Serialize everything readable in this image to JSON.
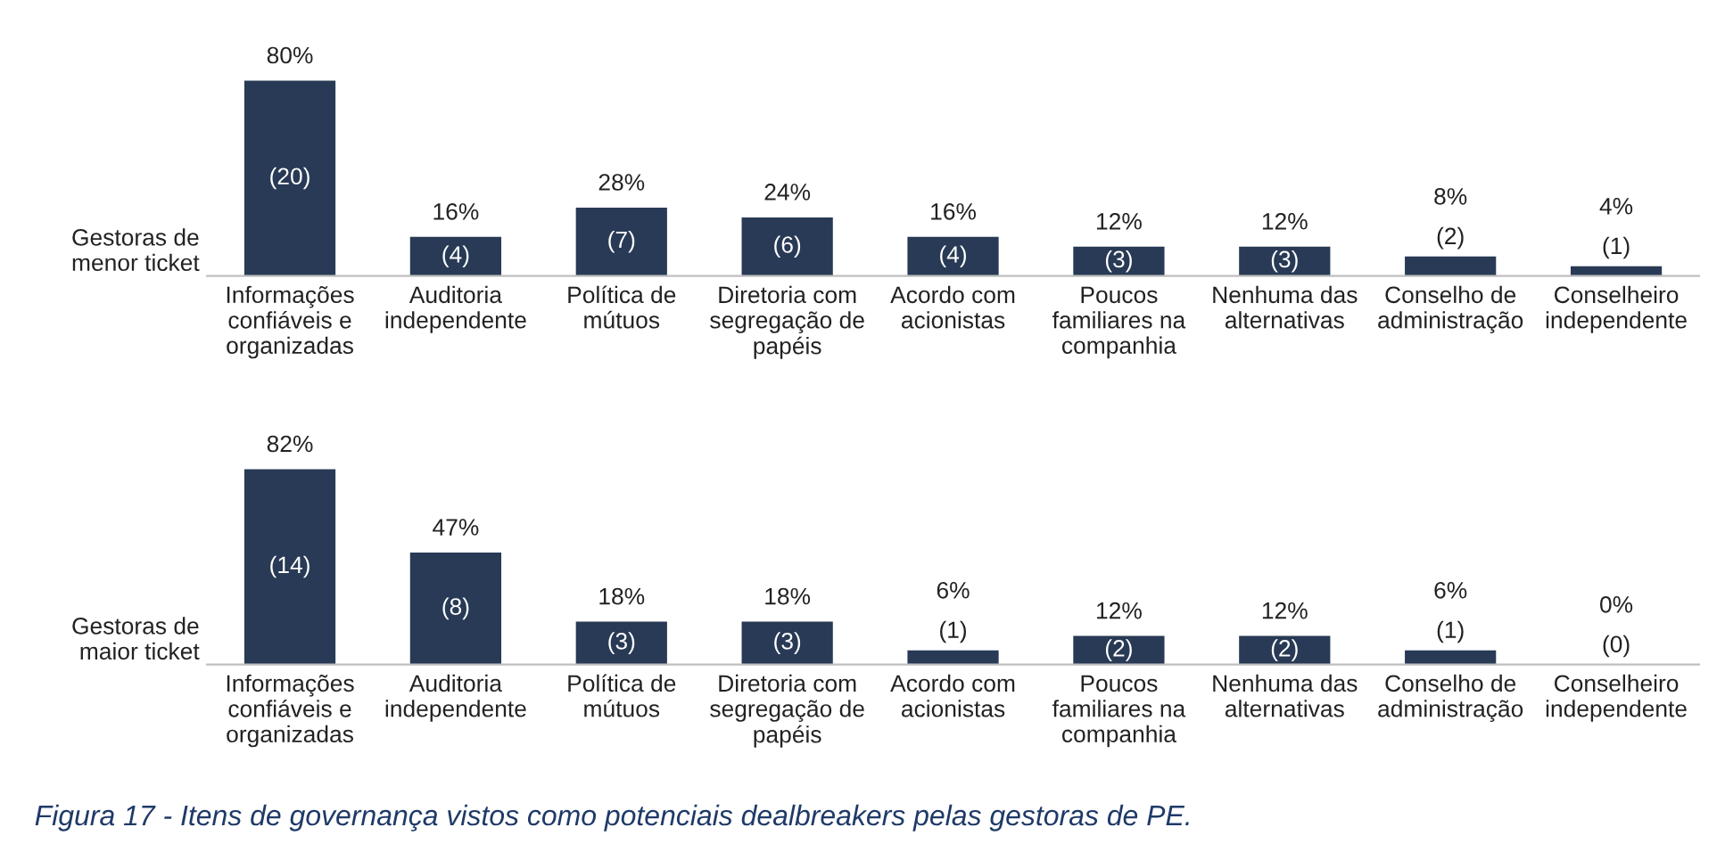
{
  "chart_data": [
    {
      "type": "bar",
      "ylabel": "Gestoras de\nmenor ticket",
      "color": "#283a55",
      "tick_labels": "x",
      "categories": [
        "Informações\nconfiáveis e\norganizadas",
        "Auditoria\nindependente",
        "Política de\nmútuos",
        "Diretoria com\nsegregação de\npapéis",
        "Acordo com\nacionistas",
        "Poucos\nfamiliares na\ncompanhia",
        "Nenhuma das\nalternativas",
        "Conselho de\nadministração",
        "Conselheiro\nindependente"
      ],
      "values": [
        80,
        16,
        28,
        24,
        16,
        12,
        12,
        8,
        4
      ],
      "value_labels": [
        "80%",
        "16%",
        "28%",
        "24%",
        "16%",
        "12%",
        "12%",
        "8%",
        "4%"
      ],
      "annotations": [
        "(20)",
        "(4)",
        "(7)",
        "(6)",
        "(4)",
        "(3)",
        "(3)",
        "(2)",
        "(1)"
      ]
    },
    {
      "type": "bar",
      "ylabel": "Gestoras de\nmaior ticket",
      "color": "#283a55",
      "tick_labels": "x",
      "categories": [
        "Informações\nconfiáveis e\norganizadas",
        "Auditoria\nindependente",
        "Política de\nmútuos",
        "Diretoria com\nsegregação de\npapéis",
        "Acordo com\nacionistas",
        "Poucos\nfamiliares na\ncompanhia",
        "Nenhuma das\nalternativas",
        "Conselho de\nadministração",
        "Conselheiro\nindependente"
      ],
      "values": [
        82,
        47,
        18,
        18,
        6,
        12,
        12,
        6,
        0
      ],
      "value_labels": [
        "82%",
        "47%",
        "18%",
        "18%",
        "6%",
        "12%",
        "12%",
        "6%",
        "0%"
      ],
      "annotations": [
        "(14)",
        "(8)",
        "(3)",
        "(3)",
        "(1)",
        "(2)",
        "(2)",
        "(1)",
        "(0)",
        "Figura 17 - Itens de governança vistos como potenciais dealbreakers pelas gestoras de PE."
      ]
    }
  ]
}
